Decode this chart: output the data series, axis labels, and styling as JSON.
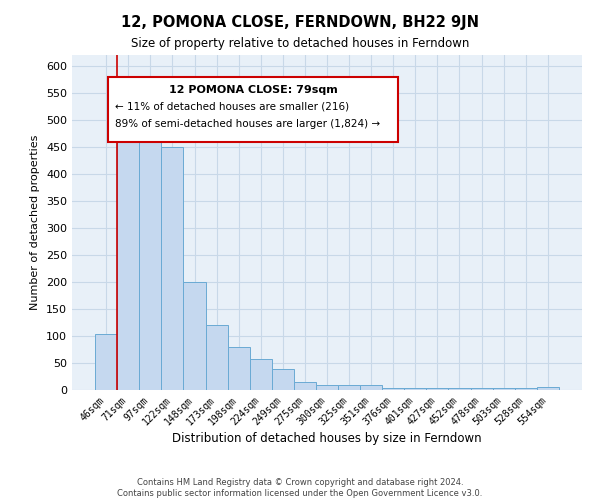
{
  "title": "12, POMONA CLOSE, FERNDOWN, BH22 9JN",
  "subtitle": "Size of property relative to detached houses in Ferndown",
  "xlabel": "Distribution of detached houses by size in Ferndown",
  "ylabel": "Number of detached properties",
  "footer_line1": "Contains HM Land Registry data © Crown copyright and database right 2024.",
  "footer_line2": "Contains public sector information licensed under the Open Government Licence v3.0.",
  "bin_labels": [
    "46sqm",
    "71sqm",
    "97sqm",
    "122sqm",
    "148sqm",
    "173sqm",
    "198sqm",
    "224sqm",
    "249sqm",
    "275sqm",
    "300sqm",
    "325sqm",
    "351sqm",
    "376sqm",
    "401sqm",
    "427sqm",
    "452sqm",
    "478sqm",
    "503sqm",
    "528sqm",
    "554sqm"
  ],
  "bar_heights": [
    103,
    487,
    484,
    450,
    200,
    121,
    80,
    58,
    38,
    15,
    9,
    9,
    9,
    3,
    3,
    3,
    3,
    3,
    3,
    3,
    5
  ],
  "bar_color": "#c5d8ef",
  "bar_edge_color": "#6aaad4",
  "grid_color": "#c8d8e8",
  "background_color": "#e8f0f8",
  "red_line_color": "#cc0000",
  "annotation_title": "12 POMONA CLOSE: 79sqm",
  "annotation_line1": "← 11% of detached houses are smaller (216)",
  "annotation_line2": "89% of semi-detached houses are larger (1,824) →",
  "annotation_box_color": "#ffffff",
  "annotation_box_edge": "#cc0000",
  "ylim": [
    0,
    620
  ],
  "yticks": [
    0,
    50,
    100,
    150,
    200,
    250,
    300,
    350,
    400,
    450,
    500,
    550,
    600
  ]
}
